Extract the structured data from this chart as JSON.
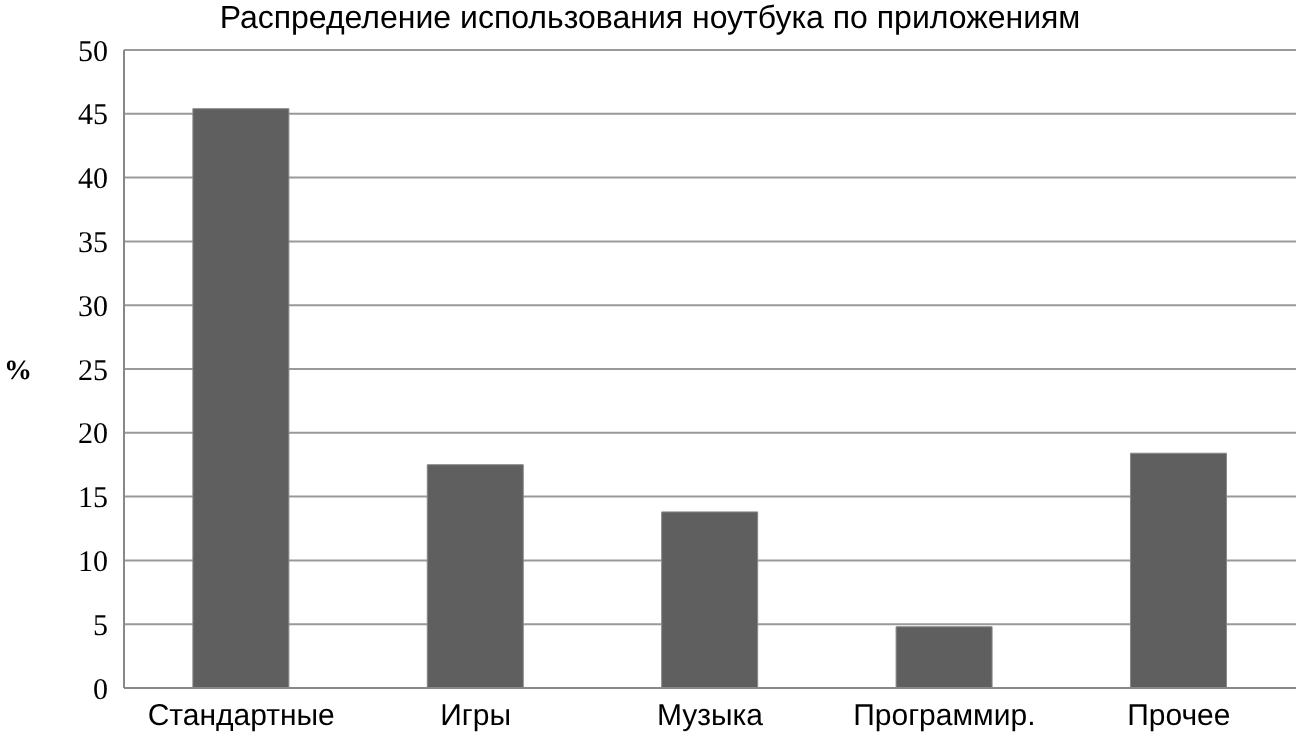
{
  "chart_data": {
    "type": "bar",
    "title": "Распределение использования ноутбука по приложениям",
    "ylabel": "%",
    "categories": [
      "Стандартные",
      "Игры",
      "Музыка",
      "Программир.",
      "Прочее"
    ],
    "values": [
      45.4,
      17.5,
      13.8,
      4.8,
      18.4
    ],
    "color": "#5f5f5f",
    "ylim": [
      0,
      50
    ],
    "yticks": [
      0,
      5,
      10,
      15,
      20,
      25,
      30,
      35,
      40,
      45,
      50
    ],
    "grid": "y",
    "legend": false
  }
}
